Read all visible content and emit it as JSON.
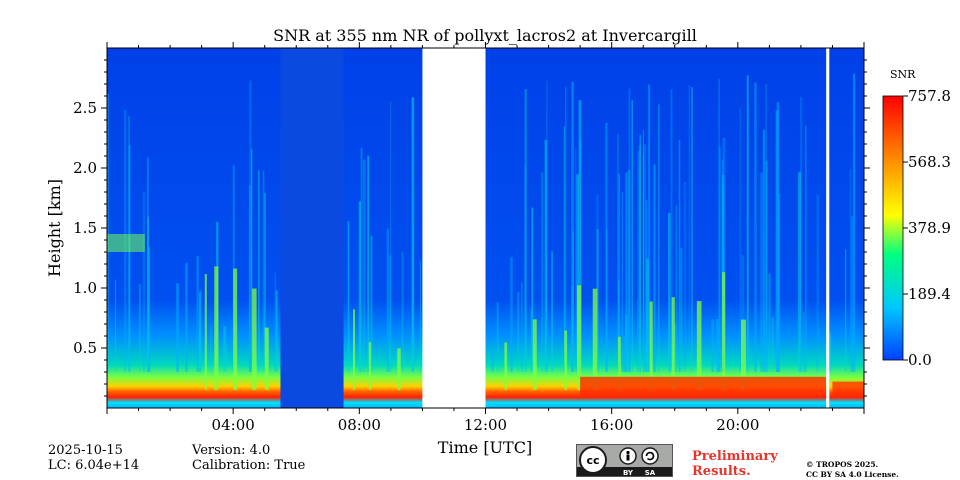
{
  "chart_data": {
    "type": "heatmap",
    "title": "SNR at 355 nm NR of pollyxt_lacros2 at Invercargill",
    "xlabel": "Time [UTC]",
    "ylabel": "Height [km]",
    "xlim": [
      0,
      24
    ],
    "ylim": [
      0,
      3.0
    ],
    "x_ticks": [
      4,
      8,
      12,
      16,
      20
    ],
    "x_tick_labels": [
      "04:00",
      "08:00",
      "12:00",
      "16:00",
      "20:00"
    ],
    "y_ticks": [
      0.5,
      1.0,
      1.5,
      2.0,
      2.5
    ],
    "y_tick_labels": [
      "0.5",
      "1.0",
      "1.5",
      "2.0",
      "2.5"
    ],
    "colorbar": {
      "label": "SNR",
      "range": [
        0.0,
        757.8
      ],
      "tick_values": [
        0.0,
        189.4,
        378.9,
        568.3,
        757.8
      ],
      "tick_labels": [
        "0.0",
        "189.4",
        "378.9",
        "568.3",
        "757.8"
      ],
      "colormap": [
        "#0040ff",
        "#00c8ff",
        "#00ff7f",
        "#ffff00",
        "#ff8000",
        "#ff0000"
      ]
    },
    "no_data_intervals_utc_hours": [
      [
        10.0,
        12.0
      ],
      [
        22.8,
        22.9
      ]
    ],
    "low_signal_intervals_utc_hours": [
      [
        5.5,
        7.5
      ]
    ],
    "colors": {
      "background_snr": "#0a4ae0",
      "no_data": "#ffffff"
    }
  },
  "info": {
    "date": "2025-10-15",
    "lc": "LC: 6.04e+14",
    "version": "Version: 4.0",
    "calibration": "Calibration: True"
  },
  "license": {
    "badge_text": "cc BY SA",
    "preliminary_line1": "Preliminary",
    "preliminary_line2": "Results.",
    "copyright_line1": "© TROPOS 2025.",
    "copyright_line2": "CC BY SA 4.0 License."
  }
}
